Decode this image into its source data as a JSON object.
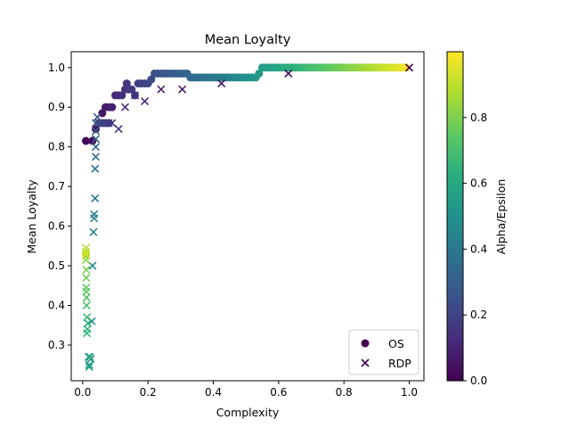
{
  "chart_data": {
    "type": "scatter",
    "title": "Mean Loyalty",
    "xlabel": "Complexity",
    "ylabel": "Mean Loyalty",
    "xlim": [
      -0.035,
      1.045
    ],
    "ylim": [
      0.21,
      1.04
    ],
    "xticks": [
      0.0,
      0.2,
      0.4,
      0.6,
      0.8,
      1.0
    ],
    "yticks": [
      0.3,
      0.4,
      0.5,
      0.6,
      0.7,
      0.8,
      0.9,
      1.0
    ],
    "grid": false,
    "legend": {
      "position": "lower-right",
      "entries": [
        "OS",
        "RDP"
      ]
    },
    "colorbar": {
      "label": "Alpha/Epsilon",
      "range": [
        0.0,
        1.0
      ],
      "ticks": [
        0.0,
        0.2,
        0.4,
        0.6,
        0.8
      ],
      "colormap": "viridis"
    },
    "series": [
      {
        "name": "OS",
        "marker": "circle",
        "points": [
          [
            0.01,
            0.815,
            0.01
          ],
          [
            0.03,
            0.815,
            0.02
          ],
          [
            0.04,
            0.845,
            0.03
          ],
          [
            0.05,
            0.86,
            0.05
          ],
          [
            0.06,
            0.86,
            0.07
          ],
          [
            0.07,
            0.86,
            0.08
          ],
          [
            0.08,
            0.86,
            0.1
          ],
          [
            0.06,
            0.885,
            0.06
          ],
          [
            0.07,
            0.9,
            0.07
          ],
          [
            0.08,
            0.9,
            0.08
          ],
          [
            0.09,
            0.9,
            0.09
          ],
          [
            0.1,
            0.93,
            0.11
          ],
          [
            0.11,
            0.93,
            0.12
          ],
          [
            0.12,
            0.93,
            0.13
          ],
          [
            0.13,
            0.945,
            0.14
          ],
          [
            0.135,
            0.96,
            0.15
          ],
          [
            0.14,
            0.945,
            0.16
          ],
          [
            0.15,
            0.945,
            0.17
          ],
          [
            0.16,
            0.93,
            0.17
          ],
          [
            0.17,
            0.96,
            0.18
          ],
          [
            0.18,
            0.96,
            0.19
          ],
          [
            0.19,
            0.96,
            0.2
          ],
          [
            0.2,
            0.96,
            0.21
          ],
          [
            0.21,
            0.97,
            0.22
          ],
          [
            0.22,
            0.985,
            0.23
          ],
          [
            0.23,
            0.985,
            0.24
          ],
          [
            0.24,
            0.985,
            0.25
          ],
          [
            0.25,
            0.985,
            0.26
          ],
          [
            0.26,
            0.985,
            0.27
          ],
          [
            0.27,
            0.985,
            0.28
          ],
          [
            0.28,
            0.985,
            0.28
          ],
          [
            0.29,
            0.985,
            0.29
          ],
          [
            0.3,
            0.985,
            0.3
          ],
          [
            0.31,
            0.985,
            0.31
          ],
          [
            0.32,
            0.985,
            0.32
          ],
          [
            0.33,
            0.975,
            0.33
          ],
          [
            0.34,
            0.975,
            0.34
          ],
          [
            0.35,
            0.975,
            0.35
          ],
          [
            0.36,
            0.975,
            0.36
          ],
          [
            0.37,
            0.975,
            0.37
          ],
          [
            0.38,
            0.975,
            0.38
          ],
          [
            0.39,
            0.975,
            0.39
          ],
          [
            0.4,
            0.975,
            0.4
          ],
          [
            0.41,
            0.975,
            0.41
          ],
          [
            0.42,
            0.975,
            0.42
          ],
          [
            0.43,
            0.975,
            0.42
          ],
          [
            0.44,
            0.975,
            0.43
          ],
          [
            0.45,
            0.975,
            0.44
          ],
          [
            0.46,
            0.975,
            0.45
          ],
          [
            0.47,
            0.975,
            0.46
          ],
          [
            0.48,
            0.975,
            0.47
          ],
          [
            0.49,
            0.975,
            0.48
          ],
          [
            0.5,
            0.975,
            0.49
          ],
          [
            0.51,
            0.975,
            0.5
          ],
          [
            0.52,
            0.975,
            0.51
          ],
          [
            0.53,
            0.975,
            0.52
          ],
          [
            0.54,
            0.985,
            0.53
          ],
          [
            0.55,
            1.0,
            0.54
          ],
          [
            0.56,
            1.0,
            0.55
          ],
          [
            0.57,
            1.0,
            0.56
          ],
          [
            0.58,
            1.0,
            0.57
          ],
          [
            0.59,
            1.0,
            0.58
          ],
          [
            0.6,
            1.0,
            0.59
          ],
          [
            0.61,
            1.0,
            0.6
          ],
          [
            0.62,
            1.0,
            0.61
          ],
          [
            0.63,
            1.0,
            0.62
          ],
          [
            0.64,
            1.0,
            0.63
          ],
          [
            0.65,
            1.0,
            0.64
          ],
          [
            0.66,
            1.0,
            0.65
          ],
          [
            0.67,
            1.0,
            0.66
          ],
          [
            0.68,
            1.0,
            0.67
          ],
          [
            0.69,
            1.0,
            0.68
          ],
          [
            0.7,
            1.0,
            0.69
          ],
          [
            0.71,
            1.0,
            0.7
          ],
          [
            0.72,
            1.0,
            0.71
          ],
          [
            0.73,
            1.0,
            0.72
          ],
          [
            0.74,
            1.0,
            0.73
          ],
          [
            0.75,
            1.0,
            0.74
          ],
          [
            0.76,
            1.0,
            0.75
          ],
          [
            0.77,
            1.0,
            0.76
          ],
          [
            0.78,
            1.0,
            0.77
          ],
          [
            0.79,
            1.0,
            0.78
          ],
          [
            0.8,
            1.0,
            0.79
          ],
          [
            0.81,
            1.0,
            0.8
          ],
          [
            0.82,
            1.0,
            0.81
          ],
          [
            0.83,
            1.0,
            0.82
          ],
          [
            0.84,
            1.0,
            0.83
          ],
          [
            0.85,
            1.0,
            0.84
          ],
          [
            0.86,
            1.0,
            0.85
          ],
          [
            0.87,
            1.0,
            0.86
          ],
          [
            0.88,
            1.0,
            0.87
          ],
          [
            0.89,
            1.0,
            0.88
          ],
          [
            0.9,
            1.0,
            0.89
          ],
          [
            0.91,
            1.0,
            0.9
          ],
          [
            0.92,
            1.0,
            0.91
          ],
          [
            0.93,
            1.0,
            0.92
          ],
          [
            0.94,
            1.0,
            0.93
          ],
          [
            0.95,
            1.0,
            0.94
          ],
          [
            0.96,
            1.0,
            0.95
          ],
          [
            0.97,
            1.0,
            0.96
          ],
          [
            0.98,
            1.0,
            0.97
          ],
          [
            0.99,
            1.0,
            0.98
          ],
          [
            0.01,
            0.53,
            0.99
          ]
        ]
      },
      {
        "name": "RDP",
        "marker": "x",
        "points": [
          [
            1.0,
            1.0,
            0.0
          ],
          [
            0.63,
            0.985,
            0.02
          ],
          [
            0.425,
            0.96,
            0.05
          ],
          [
            0.305,
            0.945,
            0.08
          ],
          [
            0.24,
            0.945,
            0.1
          ],
          [
            0.19,
            0.915,
            0.12
          ],
          [
            0.16,
            0.93,
            0.13
          ],
          [
            0.13,
            0.9,
            0.14
          ],
          [
            0.11,
            0.845,
            0.15
          ],
          [
            0.09,
            0.86,
            0.16
          ],
          [
            0.08,
            0.86,
            0.18
          ],
          [
            0.07,
            0.86,
            0.2
          ],
          [
            0.06,
            0.86,
            0.22
          ],
          [
            0.05,
            0.86,
            0.24
          ],
          [
            0.045,
            0.875,
            0.26
          ],
          [
            0.04,
            0.86,
            0.28
          ],
          [
            0.04,
            0.84,
            0.3
          ],
          [
            0.04,
            0.82,
            0.32
          ],
          [
            0.04,
            0.8,
            0.34
          ],
          [
            0.04,
            0.775,
            0.36
          ],
          [
            0.038,
            0.745,
            0.38
          ],
          [
            0.038,
            0.67,
            0.4
          ],
          [
            0.035,
            0.63,
            0.42
          ],
          [
            0.035,
            0.62,
            0.44
          ],
          [
            0.033,
            0.585,
            0.46
          ],
          [
            0.03,
            0.5,
            0.48
          ],
          [
            0.028,
            0.36,
            0.5
          ],
          [
            0.025,
            0.265,
            0.52
          ],
          [
            0.022,
            0.27,
            0.54
          ],
          [
            0.02,
            0.25,
            0.56
          ],
          [
            0.02,
            0.245,
            0.58
          ],
          [
            0.018,
            0.27,
            0.6
          ],
          [
            0.016,
            0.355,
            0.62
          ],
          [
            0.014,
            0.34,
            0.64
          ],
          [
            0.013,
            0.33,
            0.66
          ],
          [
            0.013,
            0.37,
            0.68
          ],
          [
            0.012,
            0.4,
            0.7
          ],
          [
            0.012,
            0.42,
            0.72
          ],
          [
            0.011,
            0.435,
            0.74
          ],
          [
            0.011,
            0.445,
            0.76
          ],
          [
            0.011,
            0.47,
            0.78
          ],
          [
            0.011,
            0.49,
            0.8
          ],
          [
            0.01,
            0.515,
            0.82
          ],
          [
            0.01,
            0.525,
            0.84
          ],
          [
            0.01,
            0.535,
            0.86
          ],
          [
            0.01,
            0.545,
            0.88
          ],
          [
            0.01,
            0.53,
            0.96
          ]
        ]
      }
    ]
  }
}
